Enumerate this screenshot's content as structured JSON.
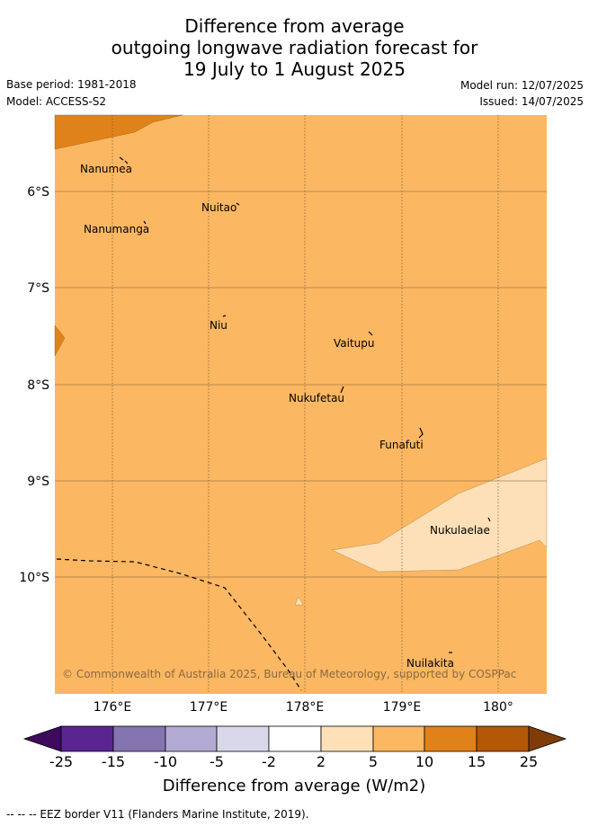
{
  "title_lines": [
    "Difference from average",
    "outgoing longwave radiation forecast for",
    "19 July to 1 August 2025"
  ],
  "meta": {
    "base_period": "Base period: 1981-2018",
    "model": "Model: ACCESS-S2",
    "model_run": "Model run: 12/07/2025",
    "issued": "Issued: 14/07/2025"
  },
  "lat_labels": [
    "6°S",
    "7°S",
    "8°S",
    "9°S",
    "10°S"
  ],
  "lon_labels": [
    "176°E",
    "177°E",
    "178°E",
    "179°E",
    "180°"
  ],
  "places": [
    "Nanumea",
    "Nuitao",
    "Nanumanga",
    "Niu",
    "Vaitupu",
    "Nukufetau",
    "Funafuti",
    "Nukulaelae",
    "Nuilakita"
  ],
  "credit": "© Commonwealth of Australia 2025, Bureau of Meteorology, supported by COSPPac",
  "colorbar": {
    "ticks": [
      "-25",
      "-15",
      "-10",
      "-5",
      "-2",
      "2",
      "5",
      "10",
      "15",
      "25"
    ],
    "colors": [
      "#3d0a5e",
      "#5a2590",
      "#8474b0",
      "#b3aad4",
      "#d9d8ea",
      "#ffffff",
      "#fde0b7",
      "#fbb762",
      "#e0821a",
      "#b35806",
      "#7f3b08"
    ],
    "label": "Difference from average (W/m2)"
  },
  "legend_note": "-- -- -- EEZ border V11 (Flanders Marine Institute, 2019)."
}
